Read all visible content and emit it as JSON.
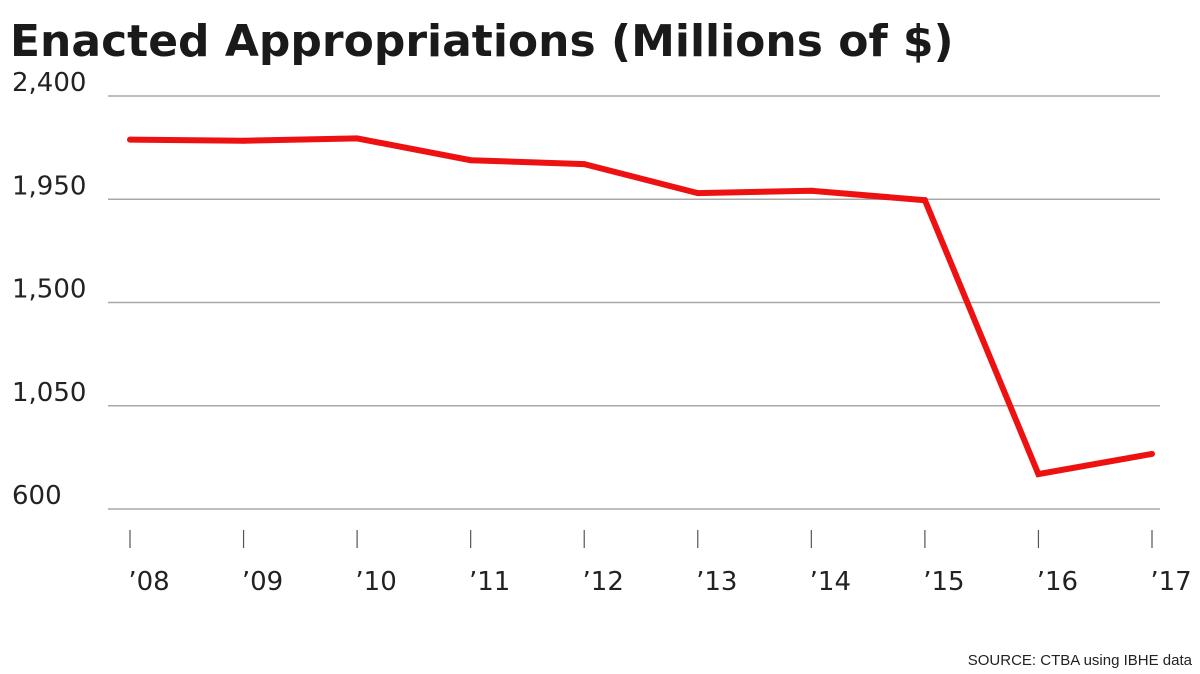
{
  "chart_data": {
    "type": "line",
    "title": "Enacted Appropriations (Millions of $)",
    "categories": [
      "’08",
      "’09",
      "’10",
      "’11",
      "’12",
      "’13",
      "’14",
      "’15",
      "’16",
      "’17"
    ],
    "series": [
      {
        "values": [
          2210,
          2205,
          2215,
          2120,
          2103,
          1977,
          1987,
          1946,
          752,
          840
        ],
        "color": "#ee1111"
      }
    ],
    "yticks": [
      "2,400",
      "1,950",
      "1,500",
      "1,050",
      "600"
    ],
    "ytick_values": [
      2400,
      1950,
      1500,
      1050,
      600
    ],
    "ylim": [
      600,
      2400
    ],
    "grid": true,
    "xlabel": "",
    "ylabel": ""
  },
  "source": "SOURCE: CTBA using IBHE data"
}
